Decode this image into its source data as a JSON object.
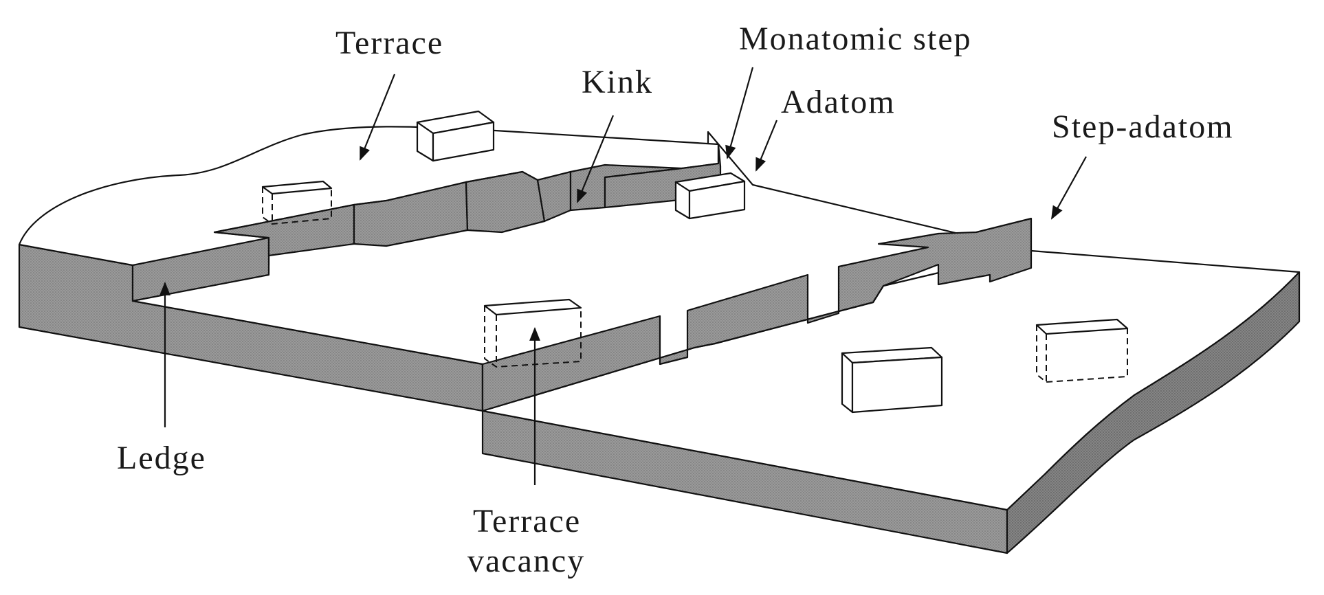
{
  "labels": {
    "terrace": "Terrace",
    "kink": "Kink",
    "monatomic_step": "Monatomic step",
    "adatom": "Adatom",
    "step_adatom": "Step-adatom",
    "ledge": "Ledge",
    "terrace_vacancy_line1": "Terrace",
    "terrace_vacancy_line2": "vacancy"
  },
  "colors": {
    "face_shade": "#8f8f8f",
    "face_shade_dark": "#7a7a7a",
    "outline": "#111111",
    "background": "#ffffff"
  }
}
